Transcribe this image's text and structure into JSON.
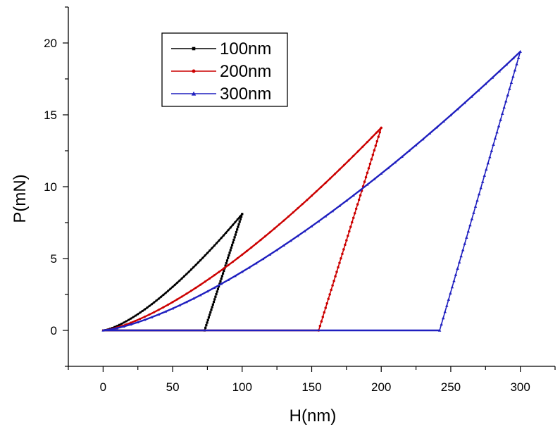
{
  "chart_data": {
    "type": "line",
    "xlabel": "H(nm)",
    "ylabel": "P(mN)",
    "xlim": [
      -25,
      325
    ],
    "ylim": [
      -2.5,
      22.5
    ],
    "xticks": [
      0,
      50,
      100,
      150,
      200,
      250,
      300
    ],
    "yticks": [
      0,
      5,
      10,
      15,
      20
    ],
    "grid": false,
    "legend_position": "top-left",
    "series": [
      {
        "name": "100nm",
        "color": "#000000",
        "marker": "square",
        "loading": {
          "hmax": 100,
          "pmax": 8.1
        },
        "unloading": [
          [
            100,
            8.1
          ],
          [
            73,
            0
          ]
        ],
        "baseline": [
          [
            73,
            0
          ],
          [
            0,
            0
          ]
        ]
      },
      {
        "name": "200nm",
        "color": "#cc0000",
        "marker": "circle",
        "loading": {
          "hmax": 200,
          "pmax": 14.1
        },
        "unloading": [
          [
            200,
            14.1
          ],
          [
            155,
            0
          ]
        ],
        "baseline": [
          [
            155,
            0
          ],
          [
            0,
            0
          ]
        ]
      },
      {
        "name": "300nm",
        "color": "#1f1fbf",
        "marker": "triangle",
        "loading": {
          "hmax": 300,
          "pmax": 19.4
        },
        "unloading": [
          [
            300,
            19.4
          ],
          [
            242,
            0
          ]
        ],
        "baseline": [
          [
            242,
            0
          ],
          [
            0,
            0
          ]
        ]
      }
    ]
  }
}
